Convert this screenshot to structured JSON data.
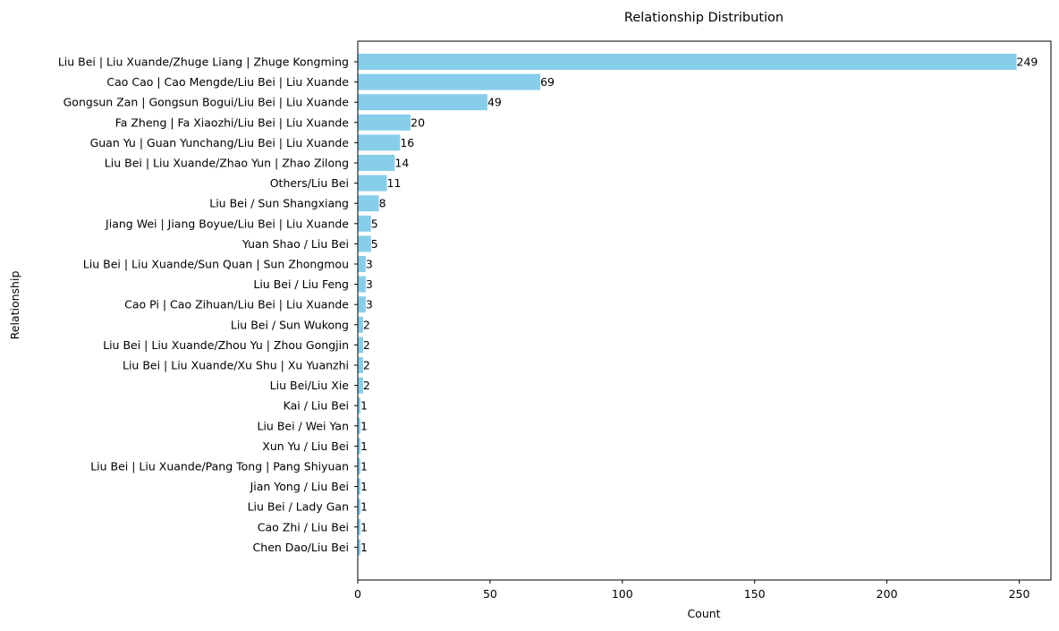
{
  "chart_data": {
    "type": "bar",
    "orientation": "horizontal",
    "title": "Relationship Distribution",
    "xlabel": "Count",
    "ylabel": "Relationship",
    "xlim": [
      0,
      262
    ],
    "xticks": [
      0,
      50,
      100,
      150,
      200,
      250
    ],
    "bar_color": "#87ceeb",
    "grid": false,
    "data_labels": true,
    "categories": [
      "Liu Bei | Liu Xuande/Zhuge Liang | Zhuge Kongming",
      "Cao Cao | Cao Mengde/Liu Bei | Liu Xuande",
      "Gongsun Zan | Gongsun Bogui/Liu Bei | Liu Xuande",
      "Fa Zheng | Fa Xiaozhi/Liu Bei | Liu Xuande",
      "Guan Yu | Guan Yunchang/Liu Bei | Liu Xuande",
      "Liu Bei | Liu Xuande/Zhao Yun | Zhao Zilong",
      "Others/Liu Bei",
      "Liu Bei / Sun Shangxiang",
      "Jiang Wei | Jiang Boyue/Liu Bei | Liu Xuande",
      "Yuan Shao / Liu Bei",
      "Liu Bei | Liu Xuande/Sun Quan | Sun Zhongmou",
      "Liu Bei / Liu Feng",
      "Cao Pi | Cao Zihuan/Liu Bei | Liu Xuande",
      "Liu Bei / Sun Wukong",
      "Liu Bei | Liu Xuande/Zhou Yu | Zhou Gongjin",
      "Liu Bei | Liu Xuande/Xu Shu | Xu Yuanzhi",
      "Liu Bei/Liu Xie",
      "Kai / Liu Bei",
      "Liu Bei / Wei Yan",
      "Xun Yu / Liu Bei",
      "Liu Bei | Liu Xuande/Pang Tong | Pang Shiyuan",
      "Jian Yong / Liu Bei",
      "Liu Bei / Lady Gan",
      "Cao Zhi / Liu Bei",
      "Chen Dao/Liu Bei"
    ],
    "values": [
      249,
      69,
      49,
      20,
      16,
      14,
      11,
      8,
      5,
      5,
      3,
      3,
      3,
      2,
      2,
      2,
      2,
      1,
      1,
      1,
      1,
      1,
      1,
      1,
      1
    ]
  }
}
